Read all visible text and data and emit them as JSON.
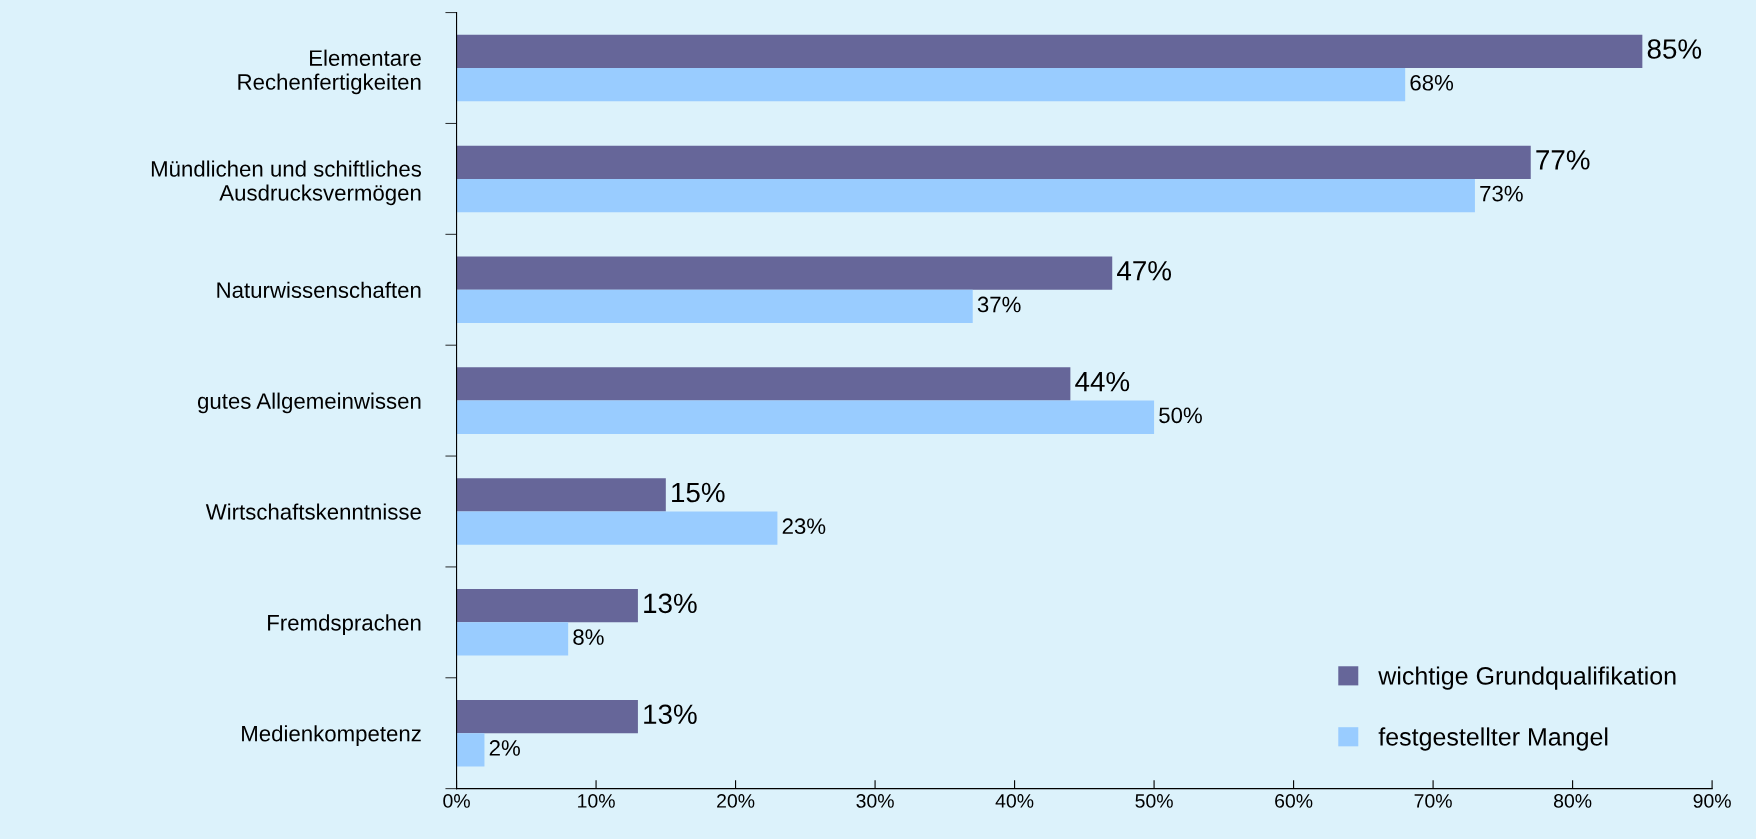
{
  "chart_data": {
    "type": "bar",
    "orientation": "horizontal",
    "categories": [
      "Elementare\nRechenfertigkeiten",
      "Mündlichen und schiftliches\nAusdrucksvermögen",
      "Naturwissenschaften",
      "gutes Allgemeinwissen",
      "Wirtschaftskenntnisse",
      "Fremdsprachen",
      "Medienkompetenz"
    ],
    "series": [
      {
        "name": "wichtige Grundqualifikation",
        "color": "#666699",
        "values": [
          85,
          77,
          47,
          44,
          15,
          13,
          13
        ],
        "value_labels": [
          "85%",
          "77%",
          "47%",
          "44%",
          "15%",
          "13%",
          "13%"
        ]
      },
      {
        "name": "festgestellter Mangel",
        "color": "#99ccff",
        "values": [
          68,
          73,
          37,
          50,
          23,
          8,
          2
        ],
        "value_labels": [
          "68%",
          "73%",
          "37%",
          "50%",
          "23%",
          "8%",
          "2%"
        ]
      }
    ],
    "xlim": [
      0,
      90
    ],
    "xticks": [
      {
        "value": 0,
        "label": "0%"
      },
      {
        "value": 10,
        "label": "10%"
      },
      {
        "value": 20,
        "label": "20%"
      },
      {
        "value": 30,
        "label": "30%"
      },
      {
        "value": 40,
        "label": "40%"
      },
      {
        "value": 50,
        "label": "50%"
      },
      {
        "value": 60,
        "label": "60%"
      },
      {
        "value": 70,
        "label": "70%"
      },
      {
        "value": 80,
        "label": "80%"
      },
      {
        "value": 90,
        "label": "90%"
      }
    ],
    "grid": false,
    "legend": "bottom right"
  }
}
